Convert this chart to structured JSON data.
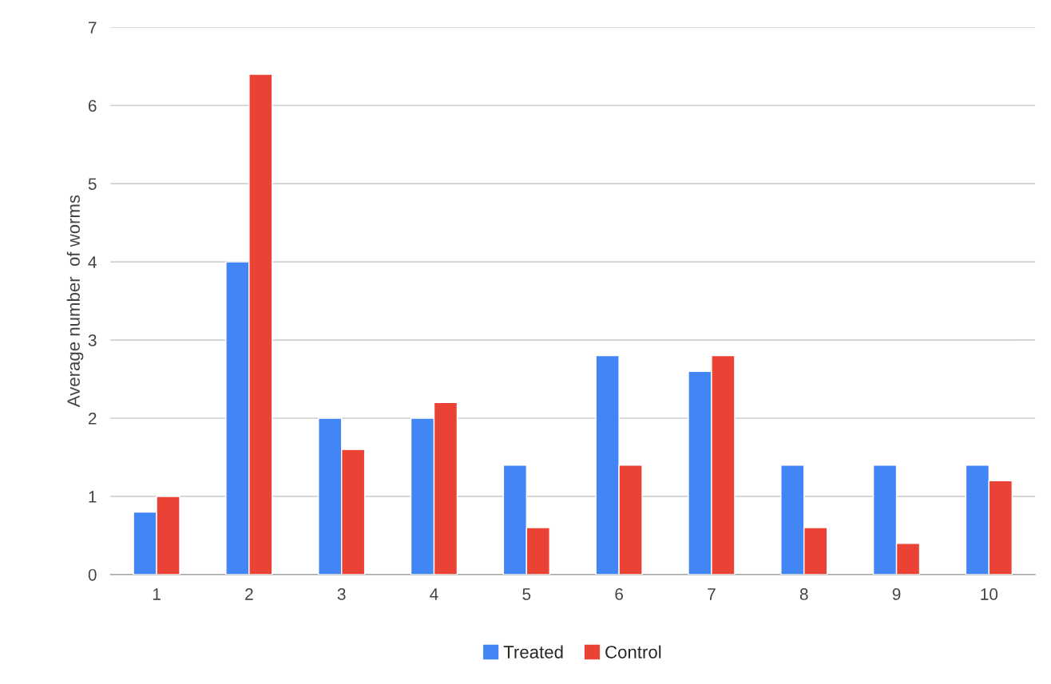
{
  "chart_data": {
    "type": "bar",
    "ylabel": "Average number  of worms",
    "categories": [
      "1",
      "2",
      "3",
      "4",
      "5",
      "6",
      "7",
      "8",
      "9",
      "10"
    ],
    "series": [
      {
        "name": "Treated",
        "color": "#4285f4",
        "values": [
          0.8,
          4,
          2,
          2,
          1.4,
          2.8,
          2.6,
          1.4,
          1.4,
          1.4
        ]
      },
      {
        "name": "Control",
        "color": "#ea4335",
        "values": [
          1,
          6.4,
          1.6,
          2.2,
          0.6,
          1.4,
          2.8,
          0.6,
          0.4,
          1.2
        ]
      }
    ],
    "ylim": [
      0,
      7
    ],
    "yticks": [
      0,
      1,
      2,
      3,
      4,
      5,
      6,
      7
    ],
    "grid": "y",
    "legend": "bottom"
  }
}
